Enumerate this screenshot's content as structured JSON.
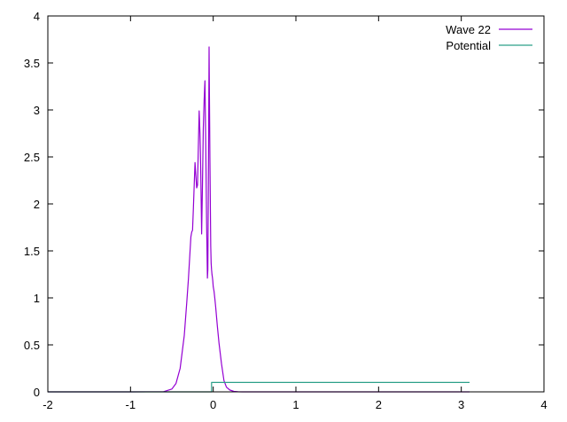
{
  "chart_data": {
    "type": "line",
    "title": "",
    "xlabel": "",
    "ylabel": "",
    "xlim": [
      -2,
      4
    ],
    "ylim": [
      0,
      4
    ],
    "xticks": [
      -2,
      -1,
      0,
      1,
      2,
      3,
      4
    ],
    "yticks": [
      0,
      0.5,
      1,
      1.5,
      2,
      2.5,
      3,
      3.5,
      4
    ],
    "xtick_labels": [
      "-2",
      "-1",
      "0",
      "1",
      "2",
      "3",
      "4"
    ],
    "ytick_labels": [
      "0",
      "0.5",
      "1",
      "1.5",
      "2",
      "2.5",
      "3",
      "3.5",
      "4"
    ],
    "grid": false,
    "legend_position": "top-right",
    "series": [
      {
        "name": "Wave 22",
        "color": "#9400d3",
        "x": [
          -2.0,
          -1.0,
          -0.6,
          -0.5,
          -0.45,
          -0.4,
          -0.35,
          -0.32,
          -0.3,
          -0.28,
          -0.27,
          -0.26,
          -0.25,
          -0.24,
          -0.23,
          -0.22,
          -0.21,
          -0.2,
          -0.19,
          -0.18,
          -0.17,
          -0.16,
          -0.155,
          -0.15,
          -0.14,
          -0.13,
          -0.12,
          -0.11,
          -0.1,
          -0.09,
          -0.08,
          -0.07,
          -0.065,
          -0.06,
          -0.055,
          -0.05,
          -0.04,
          -0.03,
          -0.025,
          -0.02,
          -0.015,
          -0.01,
          -0.005,
          0.0,
          0.01,
          0.02,
          0.03,
          0.05,
          0.07,
          0.1,
          0.13,
          0.16,
          0.2,
          0.25,
          0.3,
          0.35,
          0.5,
          1.0,
          2.0,
          3.1
        ],
        "y": [
          0,
          0,
          0.002,
          0.03,
          0.09,
          0.25,
          0.6,
          0.95,
          1.2,
          1.5,
          1.65,
          1.7,
          1.72,
          1.95,
          2.2,
          2.44,
          2.3,
          2.17,
          2.2,
          2.6,
          2.99,
          2.75,
          2.55,
          2.3,
          1.68,
          2.2,
          2.8,
          3.1,
          3.31,
          2.6,
          1.8,
          1.21,
          1.3,
          2.0,
          2.8,
          3.67,
          2.5,
          1.55,
          1.37,
          1.3,
          1.25,
          1.22,
          1.18,
          1.12,
          1.07,
          0.99,
          0.9,
          0.7,
          0.52,
          0.3,
          0.12,
          0.05,
          0.02,
          0.005,
          0.001,
          0,
          0,
          0,
          0,
          0
        ]
      },
      {
        "name": "Potential",
        "color": "#2ca089",
        "x": [
          -2.0,
          -0.02,
          -0.02,
          3.1
        ],
        "y": [
          0,
          0,
          0.1,
          0.1
        ]
      }
    ]
  }
}
